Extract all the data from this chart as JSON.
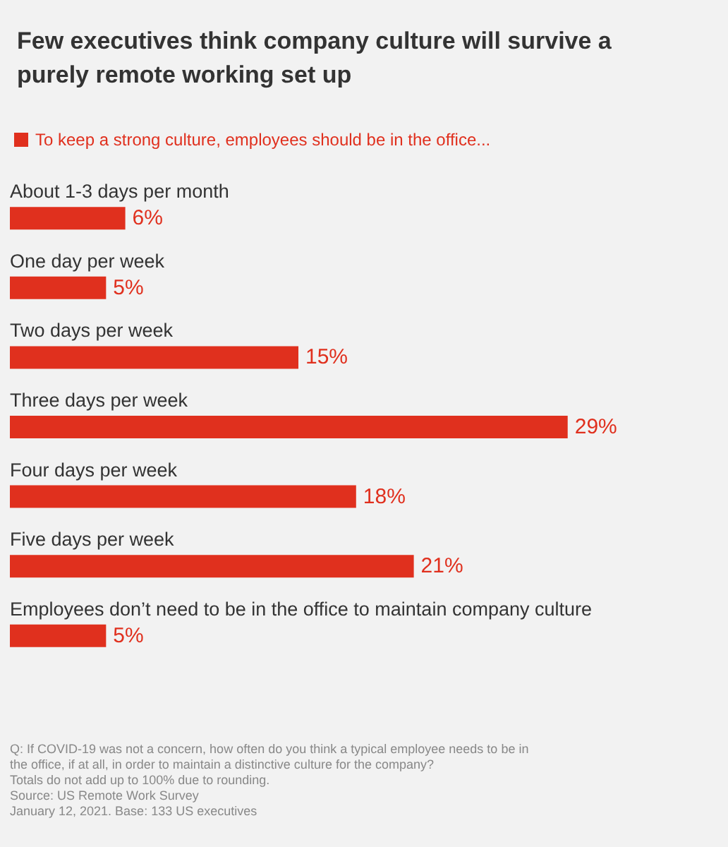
{
  "chart_data": {
    "type": "bar",
    "orientation": "horizontal",
    "title": "Few executives think company culture will survive a purely remote working set up",
    "categories": [
      "About 1-3 days per month",
      "One day per week",
      "Two days per week",
      "Three days per week",
      "Four days per week",
      "Five days per week",
      "Employees don’t need to be in the office to maintain company culture"
    ],
    "series": [
      {
        "name": "To keep a strong culture, employees should be in the office...",
        "color": "#e0301e",
        "values": [
          6,
          5,
          15,
          29,
          18,
          21,
          5
        ],
        "value_labels": [
          "6%",
          "5%",
          "15%",
          "29%",
          "18%",
          "21%",
          "5%"
        ]
      }
    ],
    "legend": "top left",
    "grid": false,
    "annotations": [
      "Q: If COVID-19 was not a concern, how often do you think a typical employee needs to be in the office, if at all, in order to maintain a distinctive culture for the company?",
      "Totals do not add up to 100% due to rounding.",
      "Source: US Remote Work Survey",
      "January 12, 2021. Base: 133 US executives"
    ]
  }
}
